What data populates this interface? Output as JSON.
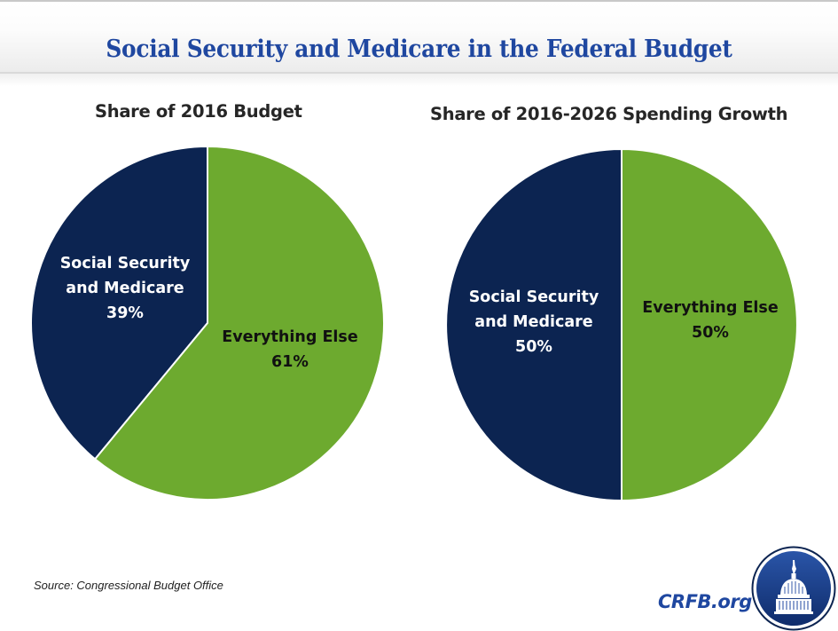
{
  "header": {
    "title": "Social Security and Medicare in the Federal Budget"
  },
  "colors": {
    "title_blue": "#1f47a0",
    "navy": "#0c2451",
    "green": "#6daa2f",
    "navy_label_text": "#ffffff",
    "green_label_text": "#111111"
  },
  "chart_data": [
    {
      "type": "pie",
      "title": "Share of 2016 Budget",
      "slices": [
        {
          "label": "Social Security and Medicare",
          "label_lines": [
            "Social Security",
            "and Medicare"
          ],
          "value": 39,
          "value_label": "39%",
          "color": "#0c2451"
        },
        {
          "label": "Everything Else",
          "label_lines": [
            "Everything Else"
          ],
          "value": 61,
          "value_label": "61%",
          "color": "#6daa2f"
        }
      ],
      "start": "12 o'clock",
      "first_slice_direction": "counterclockwise",
      "legend": "none (labels inside slices)"
    },
    {
      "type": "pie",
      "title": "Share of 2016-2026 Spending Growth",
      "slices": [
        {
          "label": "Social Security and Medicare",
          "label_lines": [
            "Social Security",
            "and Medicare"
          ],
          "value": 50,
          "value_label": "50%",
          "color": "#0c2451"
        },
        {
          "label": "Everything Else",
          "label_lines": [
            "Everything Else"
          ],
          "value": 50,
          "value_label": "50%",
          "color": "#6daa2f"
        }
      ],
      "start": "12 o'clock",
      "first_slice_direction": "counterclockwise",
      "legend": "none (labels inside slices)"
    }
  ],
  "footer": {
    "source": "Source: Congressional Budget Office",
    "brand": "CRFB.org",
    "logo_icon": "capitol-dome-logo"
  }
}
